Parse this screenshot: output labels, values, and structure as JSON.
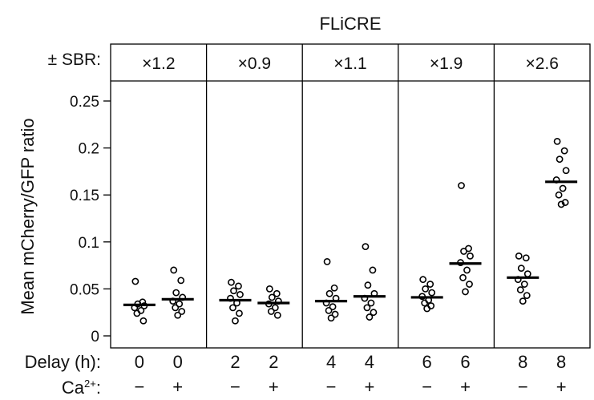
{
  "chart_data": {
    "type": "scatter",
    "title": "FLiCRE",
    "ylabel": "Mean mCherry/GFP ratio",
    "ylim": [
      0,
      0.27
    ],
    "yticks": [
      0,
      0.05,
      0.1,
      0.15,
      0.2,
      0.25
    ],
    "ytick_labels": [
      "0",
      "0.05",
      "0.1",
      "0.15",
      "0.2",
      "0.25"
    ],
    "sbr_row_label": "± SBR:",
    "delay_row_label": "Delay (h):",
    "ca_row_label": "Ca2+:",
    "groups": [
      {
        "sbr": "×1.2",
        "delay": "0",
        "conditions": [
          {
            "ca": "−",
            "mean": 0.033,
            "points": [
              0.058,
              0.036,
              0.034,
              0.032,
              0.03,
              0.027,
              0.024,
              0.016
            ]
          },
          {
            "ca": "+",
            "mean": 0.039,
            "points": [
              0.07,
              0.059,
              0.046,
              0.041,
              0.037,
              0.034,
              0.03,
              0.026,
              0.022
            ]
          }
        ]
      },
      {
        "sbr": "×0.9",
        "delay": "2",
        "conditions": [
          {
            "ca": "−",
            "mean": 0.038,
            "points": [
              0.057,
              0.053,
              0.048,
              0.044,
              0.04,
              0.035,
              0.03,
              0.024,
              0.016
            ]
          },
          {
            "ca": "+",
            "mean": 0.035,
            "points": [
              0.05,
              0.045,
              0.041,
              0.037,
              0.034,
              0.03,
              0.026,
              0.022
            ]
          }
        ]
      },
      {
        "sbr": "×1.1",
        "delay": "4",
        "conditions": [
          {
            "ca": "−",
            "mean": 0.037,
            "points": [
              0.079,
              0.051,
              0.045,
              0.04,
              0.035,
              0.031,
              0.027,
              0.023,
              0.019
            ]
          },
          {
            "ca": "+",
            "mean": 0.042,
            "points": [
              0.095,
              0.07,
              0.054,
              0.045,
              0.04,
              0.035,
              0.03,
              0.025,
              0.02
            ]
          }
        ]
      },
      {
        "sbr": "×1.9",
        "delay": "6",
        "conditions": [
          {
            "ca": "−",
            "mean": 0.041,
            "points": [
              0.06,
              0.055,
              0.05,
              0.046,
              0.042,
              0.038,
              0.035,
              0.032,
              0.029
            ]
          },
          {
            "ca": "+",
            "mean": 0.077,
            "points": [
              0.16,
              0.093,
              0.09,
              0.085,
              0.078,
              0.07,
              0.062,
              0.055,
              0.047
            ]
          }
        ]
      },
      {
        "sbr": "×2.6",
        "delay": "8",
        "conditions": [
          {
            "ca": "−",
            "mean": 0.062,
            "points": [
              0.085,
              0.083,
              0.072,
              0.066,
              0.06,
              0.055,
              0.049,
              0.043,
              0.037
            ]
          },
          {
            "ca": "+",
            "mean": 0.164,
            "points": [
              0.207,
              0.197,
              0.188,
              0.176,
              0.166,
              0.157,
              0.15,
              0.142,
              0.14
            ]
          }
        ]
      }
    ]
  }
}
